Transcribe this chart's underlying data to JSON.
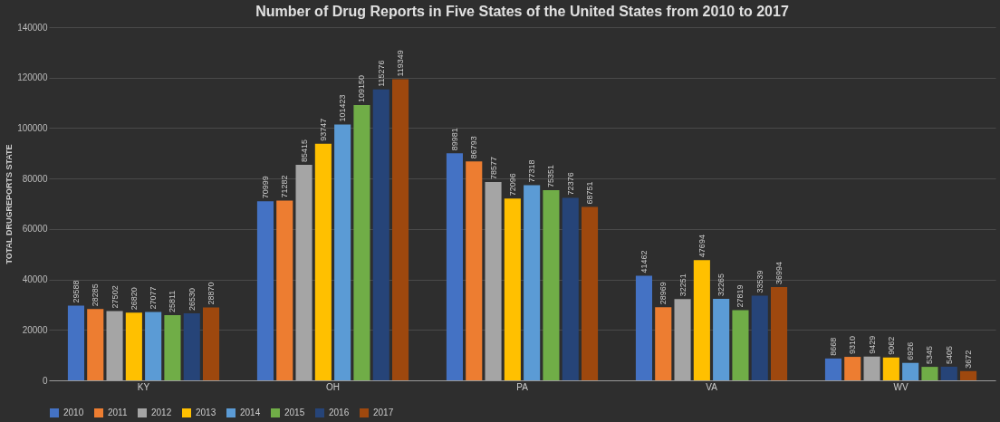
{
  "chart_data": {
    "type": "bar",
    "title": "Number of Drug Reports in Five States of the United States from 2010 to 2017",
    "ylabel": "TOTAL DRUGREPORTS STATE",
    "categories": [
      "KY",
      "OH",
      "PA",
      "VA",
      "WV"
    ],
    "series": [
      {
        "name": "2010",
        "color": "#4472c4",
        "values": [
          29588,
          70999,
          89981,
          41462,
          8668
        ]
      },
      {
        "name": "2011",
        "color": "#ed7d31",
        "values": [
          28285,
          71282,
          86793,
          28969,
          9310
        ]
      },
      {
        "name": "2012",
        "color": "#a5a5a5",
        "values": [
          27502,
          85415,
          78577,
          32251,
          9429
        ]
      },
      {
        "name": "2013",
        "color": "#ffc000",
        "values": [
          26820,
          93747,
          72096,
          47694,
          9062
        ]
      },
      {
        "name": "2014",
        "color": "#5b9bd5",
        "values": [
          27077,
          101423,
          77318,
          32265,
          6926
        ]
      },
      {
        "name": "2015",
        "color": "#70ad47",
        "values": [
          25811,
          109150,
          75351,
          27819,
          5345
        ]
      },
      {
        "name": "2016",
        "color": "#264478",
        "values": [
          26530,
          115276,
          72376,
          33539,
          5405
        ]
      },
      {
        "name": "2017",
        "color": "#9e480e",
        "values": [
          28870,
          119349,
          68751,
          36994,
          3672
        ]
      }
    ],
    "ylim": [
      0,
      140000
    ],
    "yticks": [
      0,
      20000,
      40000,
      60000,
      80000,
      100000,
      120000,
      140000
    ],
    "grid": "y",
    "legend": "bottom",
    "data_labels": true
  }
}
